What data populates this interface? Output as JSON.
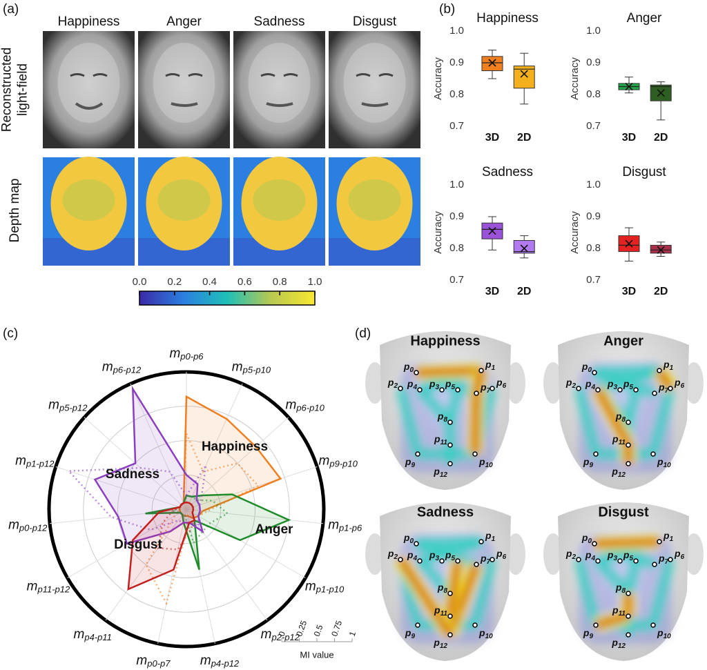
{
  "panel_labels": [
    "(a)",
    "(b)",
    "(c)",
    "(d)"
  ],
  "panel_a": {
    "columns": [
      "Happiness",
      "Anger",
      "Sadness",
      "Disgust"
    ],
    "rows": [
      "Reconstructed light-field",
      "Depth map"
    ],
    "colorbar": {
      "xlim": [
        0,
        1
      ],
      "xticks": [
        {
          "value": 0,
          "label": "0.0"
        },
        {
          "value": 0.2,
          "label": "0.2"
        },
        {
          "value": 0.4,
          "label": "0.4"
        },
        {
          "value": 0.6,
          "label": "0.6"
        },
        {
          "value": 0.8,
          "label": "0.8"
        },
        {
          "value": 1,
          "label": "1.0"
        }
      ]
    }
  },
  "chart_data": [
    {
      "type": "box",
      "title": "Happiness",
      "ylabel": "Accuracy",
      "categories": [
        "3D",
        "2D"
      ],
      "ylim": [
        0.7,
        1.0
      ],
      "yticks": [
        0.7,
        0.8,
        0.9,
        {
          "value": 1.0,
          "label": "1.0"
        }
      ],
      "boxes": [
        {
          "color": "#f07f20",
          "min": 0.85,
          "q1": 0.875,
          "median": 0.9,
          "q3": 0.92,
          "max": 0.94,
          "mean": 0.9
        },
        {
          "color": "#f4b01c",
          "min": 0.77,
          "q1": 0.82,
          "median": 0.88,
          "q3": 0.89,
          "max": 0.93,
          "mean": 0.865
        }
      ]
    },
    {
      "type": "box",
      "title": "Anger",
      "ylabel": "Accuracy",
      "categories": [
        "3D",
        "2D"
      ],
      "ylim": [
        0.7,
        1.0
      ],
      "yticks": [
        0.7,
        0.8,
        0.9,
        {
          "value": 1.0,
          "label": "1.0"
        }
      ],
      "boxes": [
        {
          "color": "#22a64a",
          "min": 0.805,
          "q1": 0.815,
          "median": 0.825,
          "q3": 0.835,
          "max": 0.855,
          "mean": 0.825
        },
        {
          "color": "#2f5e22",
          "min": 0.72,
          "q1": 0.78,
          "median": 0.825,
          "q3": 0.83,
          "max": 0.84,
          "mean": 0.805
        }
      ]
    },
    {
      "type": "box",
      "title": "Sadness",
      "ylabel": "Accuracy",
      "categories": [
        "3D",
        "2D"
      ],
      "ylim": [
        0.7,
        1.0
      ],
      "yticks": [
        0.7,
        0.8,
        0.9,
        {
          "value": 1.0,
          "label": "1.0"
        }
      ],
      "boxes": [
        {
          "color": "#9a52d8",
          "min": 0.795,
          "q1": 0.83,
          "median": 0.86,
          "q3": 0.88,
          "max": 0.9,
          "mean": 0.855
        },
        {
          "color": "#b27af0",
          "min": 0.77,
          "q1": 0.785,
          "median": 0.79,
          "q3": 0.825,
          "max": 0.84,
          "mean": 0.8
        }
      ]
    },
    {
      "type": "box",
      "title": "Disgust",
      "ylabel": "Accuracy",
      "categories": [
        "3D",
        "2D"
      ],
      "ylim": [
        0.7,
        1.0
      ],
      "yticks": [
        0.7,
        0.8,
        0.9,
        {
          "value": 1.0,
          "label": "1.0"
        }
      ],
      "boxes": [
        {
          "color": "#e42222",
          "min": 0.76,
          "q1": 0.79,
          "median": 0.81,
          "q3": 0.84,
          "max": 0.865,
          "mean": 0.815
        },
        {
          "color": "#a8304a",
          "min": 0.775,
          "q1": 0.785,
          "median": 0.795,
          "q3": 0.81,
          "max": 0.82,
          "mean": 0.795
        }
      ]
    },
    {
      "type": "radar",
      "axis_symbol": "m",
      "categories": [
        "p0-p6",
        "p5-p10",
        "p6-p10",
        "p9-p10",
        "p1-p6",
        "p1-p10",
        "p2-p12",
        "p4-p12",
        "p0-p7",
        "p4-p11",
        "p11-p12",
        "p0-p12",
        "p1-p12",
        "p5-p12",
        "p6-p12"
      ],
      "rlim": [
        0,
        1
      ],
      "rticks": [
        0,
        0.25,
        0.5,
        0.75,
        1
      ],
      "rlabel": "MI value",
      "series": [
        {
          "name": "Happiness",
          "color": "#f07f20",
          "values": [
            0.82,
            0.72,
            0.68,
            0.72,
            0.12,
            0.1,
            0.08,
            0.05,
            0.05,
            0.05,
            0.05,
            0.05,
            0.05,
            0.05,
            0.05
          ],
          "values_2d": [
            0.55,
            0.3,
            0.5,
            0.55,
            0.15,
            0.1,
            0.2,
            0.1,
            0.7,
            0.5,
            0.1,
            0.05,
            0.05,
            0.05,
            0.05
          ]
        },
        {
          "name": "Anger",
          "color": "#1f8c2a",
          "values": [
            0.1,
            0.1,
            0.15,
            0.35,
            0.75,
            0.45,
            0.1,
            0.45,
            0.1,
            0.05,
            0.05,
            0.3,
            0.05,
            0.05,
            0.05
          ],
          "values_2d": [
            0.1,
            0.1,
            0.1,
            0.2,
            0.3,
            0.2,
            0.2,
            0.25,
            0.05,
            0.05,
            0.05,
            0.1,
            0.05,
            0.05,
            0.05
          ]
        },
        {
          "name": "Sadness",
          "color": "#8a3fc0",
          "values": [
            0.25,
            0.2,
            0.1,
            0.1,
            0.1,
            0.1,
            0.2,
            0.1,
            0.1,
            0.2,
            0.5,
            0.5,
            0.7,
            0.5,
            0.96
          ],
          "values_2d": [
            0.1,
            0.35,
            0.15,
            0.1,
            0.1,
            0.1,
            0.15,
            0.1,
            0.1,
            0.1,
            0.3,
            0.55,
            0.9,
            0.45,
            0.3
          ]
        },
        {
          "name": "Disgust",
          "color": "#c41e1e",
          "values": [
            0.05,
            0.05,
            0.05,
            0.05,
            0.05,
            0.05,
            0.1,
            0.1,
            0.45,
            0.72,
            0.45,
            0.2,
            0.05,
            0.05,
            0.05
          ],
          "values_2d": [
            0.05,
            0.05,
            0.05,
            0.05,
            0.05,
            0.05,
            0.1,
            0.15,
            0.3,
            0.35,
            0.2,
            0.1,
            0.05,
            0.05,
            0.05
          ]
        }
      ]
    }
  ],
  "panel_d": {
    "titles": [
      "Happiness",
      "Anger",
      "Sadness",
      "Disgust"
    ],
    "point_symbol": "p",
    "points": [
      "0",
      "1",
      "2",
      "3",
      "4",
      "5",
      "6",
      "7",
      "8",
      "9",
      "10",
      "11",
      "12"
    ]
  }
}
